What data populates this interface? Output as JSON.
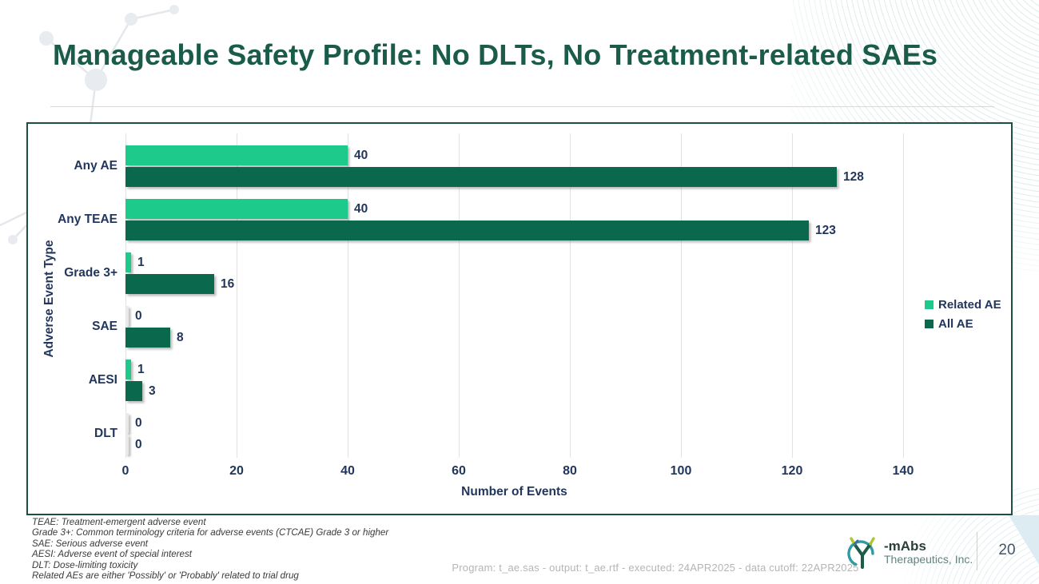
{
  "header": {
    "title": "Manageable Safety Profile: No DLTs, No Treatment-related SAEs"
  },
  "chart_data": {
    "type": "bar",
    "orientation": "horizontal",
    "categories": [
      "Any AE",
      "Any TEAE",
      "Grade 3+",
      "SAE",
      "AESI",
      "DLT"
    ],
    "series": [
      {
        "name": "Related AE",
        "color": "#1EC98C",
        "values": [
          40,
          40,
          1,
          0,
          1,
          0
        ]
      },
      {
        "name": "All AE",
        "color": "#0A684C",
        "values": [
          128,
          123,
          16,
          8,
          3,
          0
        ]
      }
    ],
    "title": "",
    "xlabel": "Number of Events",
    "ylabel": "Adverse Event Type",
    "xlim": [
      0,
      140
    ],
    "xticks": [
      0,
      20,
      40,
      60,
      80,
      100,
      120,
      140
    ],
    "grid": "vertical",
    "legend_position": "right"
  },
  "footnotes": [
    "TEAE: Treatment-emergent adverse event",
    "Grade 3+:  Common terminology criteria for adverse events (CTCAE) Grade 3 or higher",
    "SAE: Serious adverse event",
    "AESI: Adverse event of special interest",
    "DLT: Dose-limiting toxicity",
    "Related AEs are either 'Possibly' or 'Probably' related to trial drug"
  ],
  "footer": {
    "program_line": "Program: t_ae.sas - output: t_ae.rtf - executed: 24APR2025 - data cutoff: 22APR2025",
    "logo_name": "-mAbs",
    "logo_subtitle": "Therapeutics, Inc.",
    "page_number": "20"
  },
  "colors": {
    "title_green": "#1A5B4A",
    "chart_border": "#1D4F43",
    "related_bar": "#1EC98C",
    "all_bar": "#0A684C",
    "axis_text_navy": "#22365C",
    "gridline": "#e2e2e2",
    "zero_bar": "#e9e9e9",
    "corner_wedge": "#dcecf2"
  }
}
